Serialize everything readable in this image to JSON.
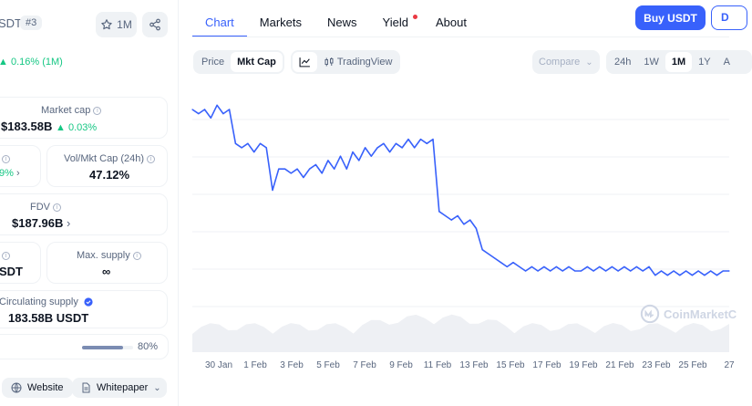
{
  "header": {
    "coin_name_fragment": "SDT",
    "rank": "#3",
    "watchlist_count": "1M",
    "price_change": "0.16% (1M)"
  },
  "stats": {
    "market_cap_label": "Market cap",
    "market_cap_value": "$183.58B",
    "market_cap_change": "0.03%",
    "volume_change_fragment": "9%",
    "vol_mkt_cap_label": "Vol/Mkt Cap (24h)",
    "vol_mkt_cap_value": "47.12%",
    "fdv_label": "FDV",
    "fdv_value": "$187.96B",
    "total_supply_fragment": "SDT",
    "max_supply_label": "Max. supply",
    "max_supply_value": "∞",
    "circulating_label": "Circulating supply",
    "circulating_value": "183.58B USDT",
    "circulating_pct": "80%",
    "circulating_fill": 0.8
  },
  "links": {
    "website": "Website",
    "whitepaper": "Whitepaper"
  },
  "nav": {
    "tabs": [
      {
        "label": "Chart"
      },
      {
        "label": "Markets"
      },
      {
        "label": "News"
      },
      {
        "label": "Yield"
      },
      {
        "label": "About"
      }
    ],
    "buy_label": "Buy USDT",
    "second_button_fragment": "D"
  },
  "toolbar": {
    "price_label": "Price",
    "mkt_cap_label": "Mkt Cap",
    "tradingview_label": "TradingView",
    "compare_label": "Compare",
    "ranges": [
      "24h",
      "1W",
      "1M",
      "1Y",
      "A"
    ],
    "active_range": "1M"
  },
  "chart_data": {
    "type": "line",
    "series": [
      {
        "values": [
          183.8,
          183.79,
          183.8,
          183.78,
          183.81,
          183.79,
          183.8,
          183.72,
          183.71,
          183.72,
          183.7,
          183.72,
          183.71,
          183.61,
          183.66,
          183.66,
          183.65,
          183.66,
          183.64,
          183.66,
          183.67,
          183.65,
          183.68,
          183.66,
          183.69,
          183.66,
          183.7,
          183.68,
          183.71,
          183.69,
          183.71,
          183.72,
          183.7,
          183.72,
          183.71,
          183.73,
          183.71,
          183.73,
          183.72,
          183.73,
          183.56,
          183.55,
          183.54,
          183.55,
          183.53,
          183.54,
          183.52,
          183.47,
          183.46,
          183.45,
          183.44,
          183.43,
          183.44,
          183.43,
          183.42,
          183.43,
          183.42,
          183.43,
          183.42,
          183.43,
          183.42,
          183.43,
          183.42,
          183.42,
          183.43,
          183.42,
          183.43,
          183.42,
          183.43,
          183.42,
          183.43,
          183.42,
          183.43,
          183.42,
          183.43,
          183.41,
          183.42,
          183.41,
          183.42,
          183.41,
          183.42,
          183.41,
          183.42,
          183.41,
          183.42,
          183.41,
          183.42,
          183.42
        ]
      }
    ],
    "x_tick_labels": [
      "30 Jan",
      "1 Feb",
      "3 Feb",
      "5 Feb",
      "7 Feb",
      "9 Feb",
      "11 Feb",
      "13 Feb",
      "15 Feb",
      "17 Feb",
      "19 Feb",
      "21 Feb",
      "23 Feb",
      "25 Feb",
      "27"
    ],
    "line_color": "#3861fb",
    "grid": true
  },
  "watermark": "CoinMarketC",
  "colors": {
    "accent": "#3861fb",
    "positive": "#16c784",
    "text_secondary": "#58667e"
  }
}
